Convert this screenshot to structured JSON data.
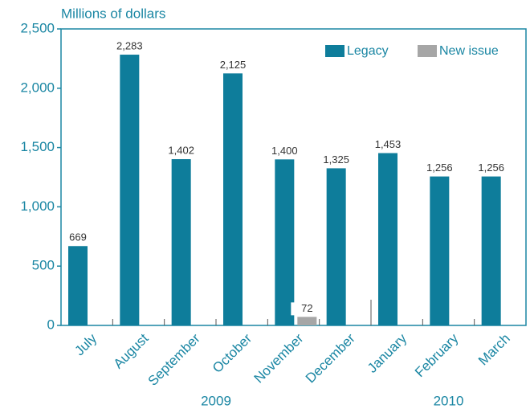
{
  "chart_data": {
    "type": "bar",
    "y_axis_label": "Millions of dollars",
    "categories": [
      "July",
      "August",
      "September",
      "October",
      "November",
      "December",
      "January",
      "February",
      "March"
    ],
    "year_labels": [
      "2009",
      "2010"
    ],
    "series": [
      {
        "name": "Legacy",
        "color": "#0e7d9b",
        "values": [
          669,
          2283,
          1402,
          2125,
          1400,
          1325,
          1453,
          1256,
          1256
        ],
        "value_labels": [
          "669",
          "2,283",
          "1,402",
          "2,125",
          "1,400",
          "1,325",
          "1,453",
          "1,256",
          "1,256"
        ]
      },
      {
        "name": "New issue",
        "color": "#a6a6a6",
        "values": [
          null,
          null,
          null,
          null,
          72,
          null,
          null,
          null,
          null
        ],
        "value_labels": [
          null,
          null,
          null,
          null,
          "72",
          null,
          null,
          null,
          null
        ]
      }
    ],
    "ylim": [
      0,
      2500
    ],
    "yticks": [
      0,
      500,
      {
        "value": 1000,
        "label": "1,000"
      },
      {
        "value": 1500,
        "label": "1,500"
      },
      {
        "value": 2000,
        "label": "2,000"
      },
      {
        "value": 2500,
        "label": "2,500"
      }
    ],
    "legend": "upper right"
  }
}
